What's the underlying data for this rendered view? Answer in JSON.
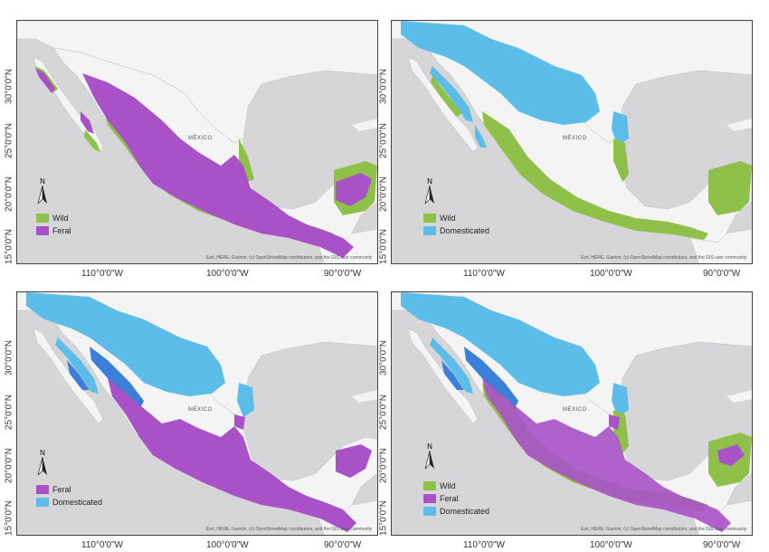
{
  "colors": {
    "wild": "#8fc04a",
    "feral": "#a952c8",
    "domesticated": "#5cbde8",
    "ocean": "#d6d6d8",
    "land": "#f4f4f4",
    "overlap": "#3b7fd8"
  },
  "lat_labels": [
    "15°0'0\"N",
    "20°0'0\"N",
    "25°0'0\"N",
    "30°0'0\"N"
  ],
  "lon_labels": [
    "110°0'0\"W",
    "100°0'0\"W",
    "90°0'0\"W"
  ],
  "country_label": "MÉXICO",
  "attribution": "Esri, HERE, Garmin, (c) OpenStreetMap contributors, and the GIS user community",
  "north_letter": "N",
  "panels": [
    {
      "legend": [
        {
          "label": "Wild",
          "key": "wild"
        },
        {
          "label": "Feral",
          "key": "feral"
        }
      ]
    },
    {
      "legend": [
        {
          "label": "Wild",
          "key": "wild"
        },
        {
          "label": "Domesticated",
          "key": "domesticated"
        }
      ]
    },
    {
      "legend": [
        {
          "label": "Feral",
          "key": "feral"
        },
        {
          "label": "Domesticated",
          "key": "domesticated"
        }
      ]
    },
    {
      "legend": [
        {
          "label": "Wild",
          "key": "wild"
        },
        {
          "label": "Feral",
          "key": "feral"
        },
        {
          "label": "Domesticated",
          "key": "domesticated"
        }
      ]
    }
  ]
}
